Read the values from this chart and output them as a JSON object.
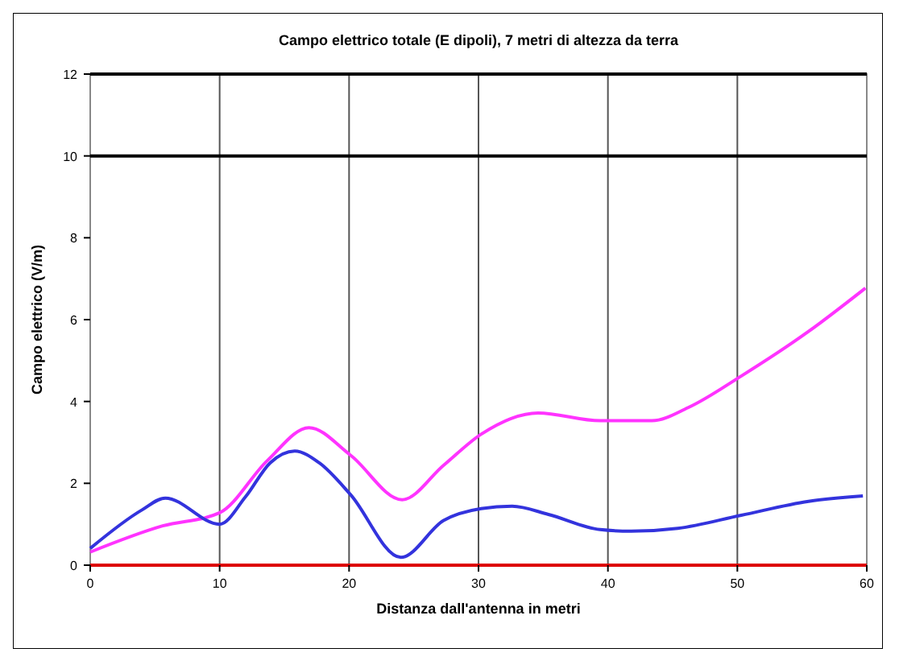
{
  "chart_data": {
    "type": "line",
    "title": "Campo elettrico totale (E dipoli), 7 metri di altezza da terra",
    "xlabel": "Distanza dall'antenna in metri",
    "ylabel": "Campo elettrico (V/m)",
    "xlim": [
      0,
      60
    ],
    "xticks": [
      0,
      10,
      20,
      30,
      40,
      50,
      60
    ],
    "ylim": [
      0,
      12
    ],
    "yticks": [
      0,
      2,
      4,
      6,
      8,
      10,
      12
    ],
    "grid": "x",
    "ref_lines": [
      {
        "axis": "y",
        "value": 10,
        "color": "#000000"
      }
    ],
    "series": [
      {
        "color": "#ff33ff",
        "x": [
          0,
          5.6,
          10,
          13.7,
          16.9,
          20.1,
          24.1,
          27.3,
          30.2,
          34.6,
          39.4,
          43.4,
          46.2,
          50.3,
          55.5,
          59.9
        ],
        "values": [
          0.32,
          0.96,
          1.28,
          2.56,
          3.36,
          2.69,
          1.6,
          2.44,
          3.2,
          3.72,
          3.53,
          3.53,
          3.85,
          4.62,
          5.71,
          6.77
        ]
      },
      {
        "color": "#3333dd",
        "x": [
          0,
          4,
          5.8,
          10,
          12,
          13.9,
          15.8,
          17.7,
          20.1,
          24,
          27.3,
          30.2,
          32.6,
          35.4,
          39.4,
          41.8,
          45.4,
          50.3,
          55.5,
          59.7
        ],
        "values": [
          0.41,
          1.35,
          1.64,
          1.0,
          1.67,
          2.5,
          2.79,
          2.5,
          1.73,
          0.19,
          1.09,
          1.38,
          1.44,
          1.24,
          0.87,
          0.83,
          0.9,
          1.22,
          1.56,
          1.69
        ]
      },
      {
        "color": "#dd0000",
        "x": [
          0,
          60
        ],
        "values": [
          0,
          0
        ]
      }
    ]
  }
}
